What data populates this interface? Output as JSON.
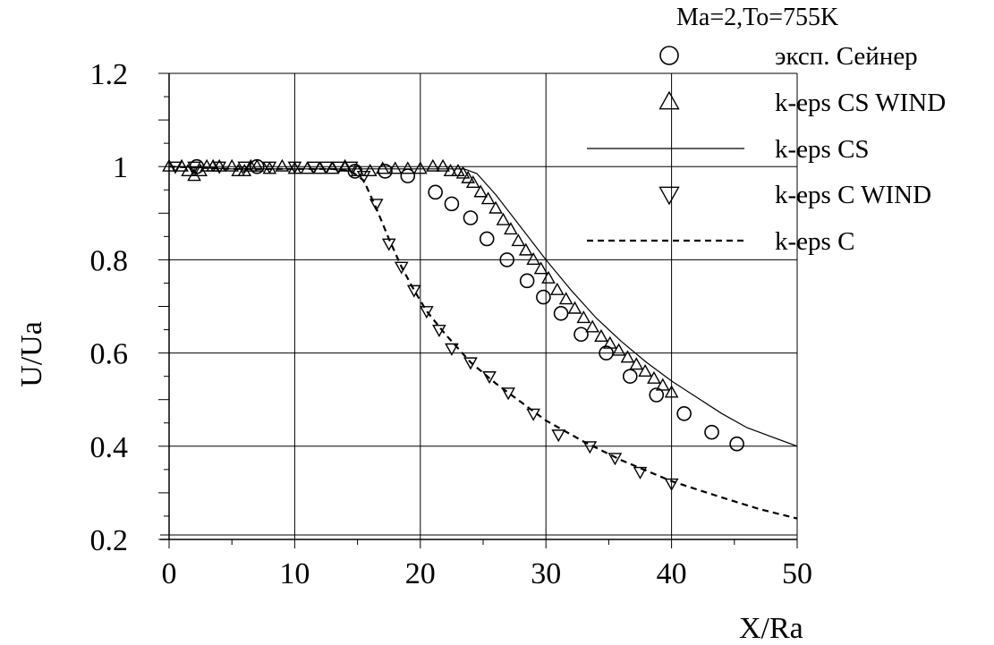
{
  "chart_data": {
    "type": "scatter",
    "title": "",
    "xlabel": "X/Ra",
    "ylabel": "U/Ua",
    "xlim": [
      0,
      50
    ],
    "ylim": [
      0.2,
      1.2
    ],
    "xticks": [
      "0",
      "10",
      "20",
      "30",
      "40",
      "50"
    ],
    "yticks": [
      "0.2",
      "0.4",
      "0.6",
      "0.8",
      "1",
      "1.2"
    ],
    "grid": true,
    "legend": {
      "title": "Ma=2,To=755K",
      "placement": "top-right"
    },
    "series": [
      {
        "name": "эксп. Сейнер",
        "kind": "marker",
        "marker": "circle",
        "x": [
          2.2,
          7.0,
          14.8,
          17.2,
          19.0,
          21.2,
          22.5,
          24.0,
          25.3,
          26.9,
          28.5,
          29.8,
          31.2,
          32.8,
          34.8,
          36.7,
          38.8,
          41.0,
          43.2,
          45.2
        ],
        "y": [
          1.0,
          1.0,
          0.99,
          0.99,
          0.98,
          0.945,
          0.92,
          0.89,
          0.845,
          0.8,
          0.755,
          0.72,
          0.685,
          0.64,
          0.6,
          0.55,
          0.51,
          0.47,
          0.43,
          0.405
        ]
      },
      {
        "name": "k-eps CS WIND",
        "kind": "marker",
        "marker": "triangle-up",
        "x": [
          0,
          1,
          1.5,
          2,
          2.5,
          3,
          3.5,
          4,
          5,
          5.5,
          6,
          6.5,
          7,
          8,
          9,
          10,
          11,
          12,
          13,
          14,
          15,
          16,
          17,
          18,
          19,
          20,
          21,
          21.8,
          22.4,
          23,
          23.4,
          23.8,
          24.2,
          24.8,
          25.4,
          26,
          26.6,
          27.2,
          27.8,
          28.4,
          29,
          29.6,
          30.2,
          30.9,
          31.6,
          32.3,
          33,
          33.7,
          34.4,
          35.1,
          35.8,
          36.5,
          37.2,
          37.9,
          38.6,
          39.3,
          40
        ],
        "y": [
          1.0,
          1.0,
          0.99,
          0.98,
          0.99,
          1.0,
          1.0,
          1.0,
          1.0,
          0.99,
          0.99,
          1.0,
          1.0,
          0.995,
          1.0,
          0.995,
          0.995,
          0.995,
          0.995,
          1.0,
          0.99,
          0.99,
          0.995,
          0.995,
          0.995,
          0.995,
          1.0,
          1.0,
          0.99,
          0.99,
          0.985,
          0.975,
          0.965,
          0.945,
          0.93,
          0.91,
          0.885,
          0.865,
          0.84,
          0.82,
          0.8,
          0.78,
          0.76,
          0.735,
          0.715,
          0.695,
          0.675,
          0.655,
          0.635,
          0.62,
          0.605,
          0.59,
          0.575,
          0.56,
          0.545,
          0.53,
          0.515
        ]
      },
      {
        "name": "k-eps CS",
        "kind": "line",
        "style": "solid",
        "x": [
          0,
          5,
          10,
          15,
          20,
          22,
          23.5,
          24.5,
          26,
          28,
          30,
          32,
          34,
          36,
          38,
          40,
          42,
          44,
          46,
          48,
          50
        ],
        "y": [
          1.0,
          0.995,
          0.995,
          0.995,
          0.995,
          0.995,
          0.995,
          0.985,
          0.94,
          0.87,
          0.8,
          0.735,
          0.675,
          0.625,
          0.58,
          0.54,
          0.505,
          0.47,
          0.44,
          0.42,
          0.4
        ]
      },
      {
        "name": "k-eps C WIND",
        "kind": "marker",
        "marker": "triangle-down",
        "x": [
          0.5,
          2,
          4,
          6,
          8,
          10,
          11.5,
          12.5,
          13.5,
          14.5,
          15.5,
          16.5,
          17.5,
          18.5,
          19.5,
          20.5,
          21.5,
          22.5,
          24,
          25.5,
          27,
          29,
          31,
          33.5,
          35.5,
          37.5,
          40
        ],
        "y": [
          1.0,
          1.0,
          1.0,
          1.0,
          1.0,
          1.0,
          1.0,
          1.0,
          1.0,
          1.0,
          0.98,
          0.92,
          0.835,
          0.785,
          0.735,
          0.69,
          0.65,
          0.61,
          0.58,
          0.55,
          0.515,
          0.47,
          0.425,
          0.4,
          0.375,
          0.345,
          0.32
        ]
      },
      {
        "name": "k-eps C",
        "kind": "line",
        "style": "dashed",
        "x": [
          0,
          5,
          10,
          13,
          14.5,
          15.5,
          16.5,
          17.5,
          18.5,
          19.5,
          20.5,
          22,
          24,
          26,
          28,
          30,
          33,
          36,
          40,
          44,
          47,
          50
        ],
        "y": [
          1.0,
          0.995,
          0.995,
          0.995,
          0.99,
          0.97,
          0.91,
          0.845,
          0.785,
          0.735,
          0.69,
          0.64,
          0.58,
          0.535,
          0.495,
          0.455,
          0.41,
          0.37,
          0.325,
          0.29,
          0.265,
          0.245
        ]
      }
    ]
  }
}
